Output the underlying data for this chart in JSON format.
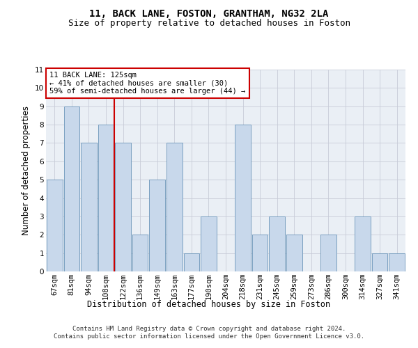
{
  "title": "11, BACK LANE, FOSTON, GRANTHAM, NG32 2LA",
  "subtitle": "Size of property relative to detached houses in Foston",
  "xlabel": "Distribution of detached houses by size in Foston",
  "ylabel": "Number of detached properties",
  "categories": [
    "67sqm",
    "81sqm",
    "94sqm",
    "108sqm",
    "122sqm",
    "136sqm",
    "149sqm",
    "163sqm",
    "177sqm",
    "190sqm",
    "204sqm",
    "218sqm",
    "231sqm",
    "245sqm",
    "259sqm",
    "273sqm",
    "286sqm",
    "300sqm",
    "314sqm",
    "327sqm",
    "341sqm"
  ],
  "values": [
    5,
    9,
    7,
    8,
    7,
    2,
    5,
    7,
    1,
    3,
    0,
    8,
    2,
    3,
    2,
    0,
    2,
    0,
    3,
    1,
    1
  ],
  "bar_color": "#c8d8eb",
  "bar_edge_color": "#7a9fc0",
  "annotation_text": "11 BACK LANE: 125sqm\n← 41% of detached houses are smaller (30)\n59% of semi-detached houses are larger (44) →",
  "annotation_box_color": "#ffffff",
  "annotation_box_edge_color": "#cc0000",
  "vline_color": "#cc0000",
  "vline_x": 3.5,
  "ylim": [
    0,
    11
  ],
  "yticks": [
    0,
    1,
    2,
    3,
    4,
    5,
    6,
    7,
    8,
    9,
    10,
    11
  ],
  "grid_color": "#c8ccd8",
  "bg_color": "#eaeff5",
  "footer": "Contains HM Land Registry data © Crown copyright and database right 2024.\nContains public sector information licensed under the Open Government Licence v3.0.",
  "title_fontsize": 10,
  "subtitle_fontsize": 9,
  "xlabel_fontsize": 8.5,
  "ylabel_fontsize": 8.5,
  "tick_fontsize": 7.5,
  "footer_fontsize": 6.5,
  "annotation_fontsize": 7.5
}
